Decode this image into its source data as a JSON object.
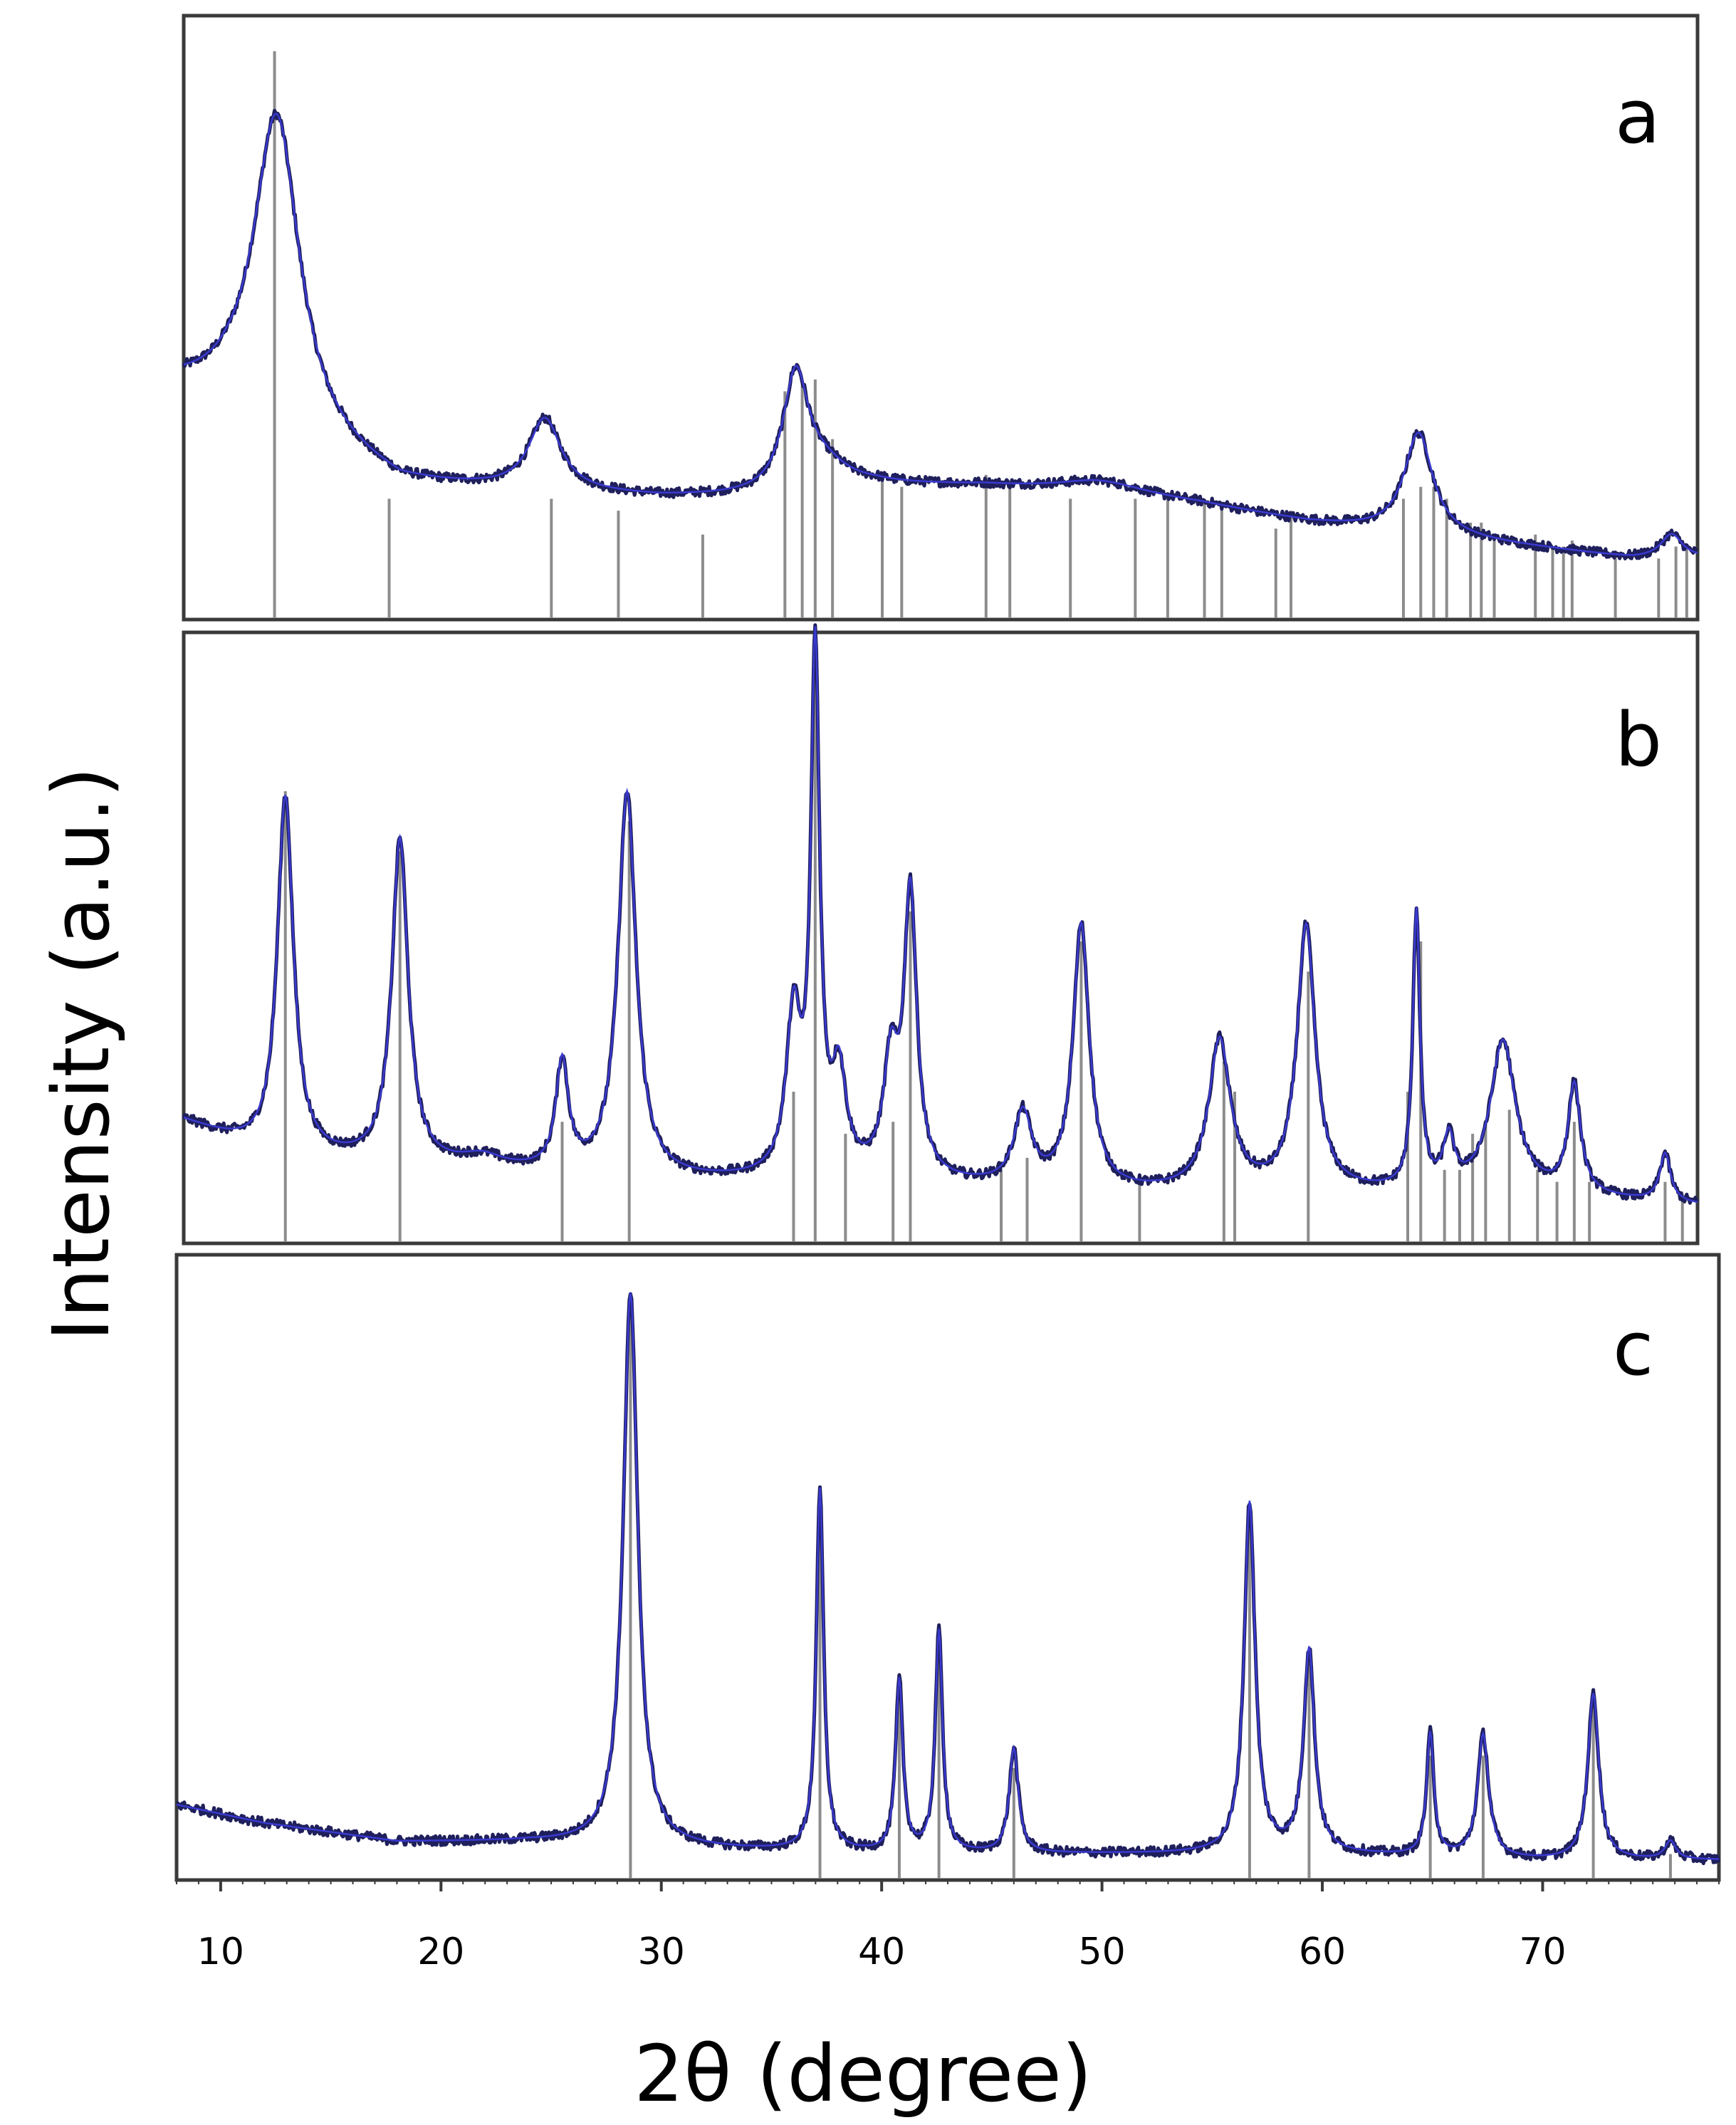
{
  "figure": {
    "ylabel": "Intensity (a.u.)",
    "xlabel": "2θ (degree)",
    "x_ticks": [
      10,
      20,
      30,
      40,
      50,
      60,
      70
    ],
    "colors": {
      "measured": "#1f1f5c",
      "fit": "#3a3ad0",
      "reference": "#8c8c8c",
      "frame": "#3a3a3a"
    }
  },
  "chart_data": [
    {
      "type": "line",
      "panel": "a",
      "xlim": [
        8,
        78
      ],
      "ylim": [
        0,
        100
      ],
      "grid": false,
      "baseline": [
        [
          8,
          38
        ],
        [
          10,
          36
        ],
        [
          14,
          28
        ],
        [
          18,
          22
        ],
        [
          30,
          20
        ],
        [
          35,
          20
        ],
        [
          40,
          22
        ],
        [
          45,
          22
        ],
        [
          50,
          21
        ],
        [
          55,
          19
        ],
        [
          60,
          16
        ],
        [
          65,
          14
        ],
        [
          70,
          12
        ],
        [
          75,
          10
        ],
        [
          78,
          10
        ]
      ],
      "peaks": [
        {
          "x": 12.3,
          "h": 53,
          "w": 1.3
        },
        {
          "x": 24.7,
          "h": 12,
          "w": 0.9
        },
        {
          "x": 36.3,
          "h": 19,
          "w": 0.7
        },
        {
          "x": 37.5,
          "h": 4,
          "w": 1.5
        },
        {
          "x": 50.5,
          "h": 2,
          "w": 2.5
        },
        {
          "x": 65.1,
          "h": 17,
          "w": 0.8
        },
        {
          "x": 76.8,
          "h": 4,
          "w": 0.6
        }
      ],
      "reference_lines": [
        {
          "x": 12.2,
          "h": 95
        },
        {
          "x": 17.5,
          "h": 20
        },
        {
          "x": 25.0,
          "h": 20
        },
        {
          "x": 28.1,
          "h": 18
        },
        {
          "x": 32.0,
          "h": 14
        },
        {
          "x": 35.8,
          "h": 38
        },
        {
          "x": 36.6,
          "h": 40
        },
        {
          "x": 37.2,
          "h": 40
        },
        {
          "x": 38.0,
          "h": 30
        },
        {
          "x": 40.3,
          "h": 24
        },
        {
          "x": 41.2,
          "h": 22
        },
        {
          "x": 45.1,
          "h": 24
        },
        {
          "x": 46.2,
          "h": 22
        },
        {
          "x": 49.0,
          "h": 20
        },
        {
          "x": 52.0,
          "h": 20
        },
        {
          "x": 53.5,
          "h": 20
        },
        {
          "x": 55.2,
          "h": 20
        },
        {
          "x": 56.0,
          "h": 18
        },
        {
          "x": 58.5,
          "h": 15
        },
        {
          "x": 59.2,
          "h": 18
        },
        {
          "x": 64.4,
          "h": 20
        },
        {
          "x": 65.2,
          "h": 22
        },
        {
          "x": 65.8,
          "h": 22
        },
        {
          "x": 66.4,
          "h": 20
        },
        {
          "x": 67.5,
          "h": 16
        },
        {
          "x": 68.0,
          "h": 16
        },
        {
          "x": 68.6,
          "h": 14
        },
        {
          "x": 70.5,
          "h": 14
        },
        {
          "x": 71.3,
          "h": 12
        },
        {
          "x": 71.8,
          "h": 12
        },
        {
          "x": 72.2,
          "h": 13
        },
        {
          "x": 74.2,
          "h": 10
        },
        {
          "x": 76.2,
          "h": 10
        },
        {
          "x": 77.0,
          "h": 12
        },
        {
          "x": 77.5,
          "h": 12
        }
      ]
    },
    {
      "type": "line",
      "panel": "b",
      "xlim": [
        8,
        78
      ],
      "ylim": [
        0,
        100
      ],
      "grid": false,
      "baseline": [
        [
          8,
          20
        ],
        [
          12,
          14
        ],
        [
          20,
          12
        ],
        [
          30,
          10
        ],
        [
          40,
          10
        ],
        [
          50,
          8
        ],
        [
          60,
          8
        ],
        [
          70,
          8
        ],
        [
          78,
          6
        ]
      ],
      "peaks": [
        {
          "x": 12.7,
          "h": 60,
          "w": 0.45
        },
        {
          "x": 18.0,
          "h": 54,
          "w": 0.45
        },
        {
          "x": 21.8,
          "h": 2,
          "w": 1.2
        },
        {
          "x": 25.5,
          "h": 18,
          "w": 0.35
        },
        {
          "x": 28.5,
          "h": 64,
          "w": 0.5
        },
        {
          "x": 36.2,
          "h": 26,
          "w": 0.4
        },
        {
          "x": 37.2,
          "h": 86,
          "w": 0.25
        },
        {
          "x": 38.3,
          "h": 16,
          "w": 0.4
        },
        {
          "x": 40.7,
          "h": 18,
          "w": 0.4
        },
        {
          "x": 41.6,
          "h": 47,
          "w": 0.35
        },
        {
          "x": 46.8,
          "h": 12,
          "w": 0.5
        },
        {
          "x": 49.5,
          "h": 44,
          "w": 0.45
        },
        {
          "x": 55.9,
          "h": 25,
          "w": 0.6
        },
        {
          "x": 59.9,
          "h": 44,
          "w": 0.5
        },
        {
          "x": 65.0,
          "h": 46,
          "w": 0.2
        },
        {
          "x": 66.5,
          "h": 8,
          "w": 0.3
        },
        {
          "x": 69.0,
          "h": 25,
          "w": 0.7
        },
        {
          "x": 72.3,
          "h": 18,
          "w": 0.35
        },
        {
          "x": 76.5,
          "h": 8,
          "w": 0.3
        }
      ],
      "reference_lines": [
        {
          "x": 12.7,
          "h": 75
        },
        {
          "x": 18.0,
          "h": 65
        },
        {
          "x": 25.5,
          "h": 20
        },
        {
          "x": 28.6,
          "h": 70
        },
        {
          "x": 36.2,
          "h": 25
        },
        {
          "x": 37.2,
          "h": 100
        },
        {
          "x": 38.6,
          "h": 18
        },
        {
          "x": 40.8,
          "h": 20
        },
        {
          "x": 41.6,
          "h": 55
        },
        {
          "x": 45.8,
          "h": 12
        },
        {
          "x": 47.0,
          "h": 14
        },
        {
          "x": 49.5,
          "h": 50
        },
        {
          "x": 52.2,
          "h": 10
        },
        {
          "x": 56.1,
          "h": 30
        },
        {
          "x": 56.6,
          "h": 25
        },
        {
          "x": 60.0,
          "h": 45
        },
        {
          "x": 64.6,
          "h": 25
        },
        {
          "x": 65.2,
          "h": 50
        },
        {
          "x": 66.3,
          "h": 12
        },
        {
          "x": 67.0,
          "h": 12
        },
        {
          "x": 67.6,
          "h": 18
        },
        {
          "x": 68.2,
          "h": 20
        },
        {
          "x": 69.3,
          "h": 22
        },
        {
          "x": 70.6,
          "h": 12
        },
        {
          "x": 71.5,
          "h": 10
        },
        {
          "x": 72.3,
          "h": 20
        },
        {
          "x": 73.0,
          "h": 10
        },
        {
          "x": 76.5,
          "h": 10
        },
        {
          "x": 77.3,
          "h": 8
        }
      ]
    },
    {
      "type": "line",
      "panel": "c",
      "xlim": [
        8,
        78
      ],
      "ylim": [
        0,
        100
      ],
      "grid": false,
      "baseline": [
        [
          8,
          12
        ],
        [
          12,
          9
        ],
        [
          18,
          6
        ],
        [
          24,
          6
        ],
        [
          30,
          5
        ],
        [
          40,
          4
        ],
        [
          50,
          4
        ],
        [
          60,
          4
        ],
        [
          70,
          3
        ],
        [
          78,
          3
        ]
      ],
      "peaks": [
        {
          "x": 28.6,
          "h": 90,
          "w": 0.4
        },
        {
          "x": 37.2,
          "h": 59,
          "w": 0.2
        },
        {
          "x": 40.8,
          "h": 28,
          "w": 0.2
        },
        {
          "x": 42.6,
          "h": 36,
          "w": 0.2
        },
        {
          "x": 46.0,
          "h": 17,
          "w": 0.25
        },
        {
          "x": 56.7,
          "h": 57,
          "w": 0.3
        },
        {
          "x": 59.4,
          "h": 33,
          "w": 0.3
        },
        {
          "x": 64.9,
          "h": 20,
          "w": 0.2
        },
        {
          "x": 67.3,
          "h": 20,
          "w": 0.3
        },
        {
          "x": 72.3,
          "h": 27,
          "w": 0.3
        },
        {
          "x": 75.8,
          "h": 3,
          "w": 0.3
        }
      ],
      "reference_lines": [
        {
          "x": 28.6,
          "h": 95
        },
        {
          "x": 37.2,
          "h": 62
        },
        {
          "x": 40.8,
          "h": 30
        },
        {
          "x": 42.6,
          "h": 38
        },
        {
          "x": 46.0,
          "h": 18
        },
        {
          "x": 56.7,
          "h": 60
        },
        {
          "x": 59.4,
          "h": 35
        },
        {
          "x": 64.9,
          "h": 20
        },
        {
          "x": 67.3,
          "h": 20
        },
        {
          "x": 72.3,
          "h": 28
        },
        {
          "x": 75.8,
          "h": 4
        }
      ]
    }
  ]
}
